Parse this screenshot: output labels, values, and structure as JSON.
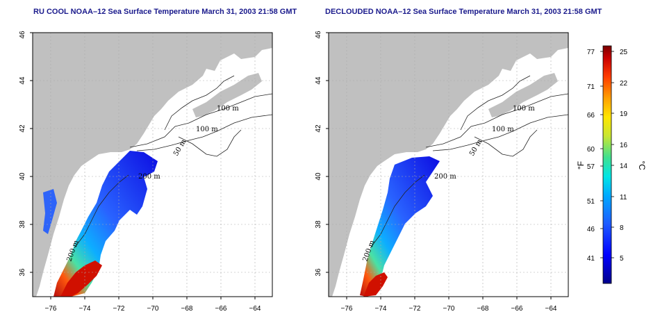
{
  "panels": [
    {
      "title": "RU COOL NOAA–12 Sea Surface Temperature March 31, 2003 21:58 GMT",
      "contour_labels": [
        "100 m",
        "100 m",
        "50 m",
        "200 m",
        "200 m"
      ]
    },
    {
      "title": "DECLOUDED NOAA–12 Sea Surface Temperature March 31, 2003 21:58 GMT",
      "contour_labels": [
        "100 m",
        "100 m",
        "50 m",
        "200 m",
        "200 m"
      ]
    }
  ],
  "map": {
    "x_ticks": [
      "−76",
      "−74",
      "−72",
      "−70",
      "−68",
      "−66",
      "−64"
    ],
    "y_ticks": [
      "36",
      "38",
      "40",
      "42",
      "44",
      "46"
    ],
    "land_color": "#c0c0c0",
    "grid": true
  },
  "colorbar": {
    "f_ticks": [
      "77",
      "71",
      "66",
      "60",
      "57",
      "51",
      "46",
      "41"
    ],
    "c_ticks": [
      "25",
      "22",
      "19",
      "16",
      "14",
      "11",
      "8",
      "5"
    ],
    "f_unit": "°F",
    "c_unit": "°C",
    "colors": [
      "#00008b",
      "#0000ff",
      "#1e5aff",
      "#00aaff",
      "#00e5e5",
      "#40e090",
      "#c8e632",
      "#ffe600",
      "#ffa000",
      "#ff3c00",
      "#c80000",
      "#780000"
    ]
  }
}
